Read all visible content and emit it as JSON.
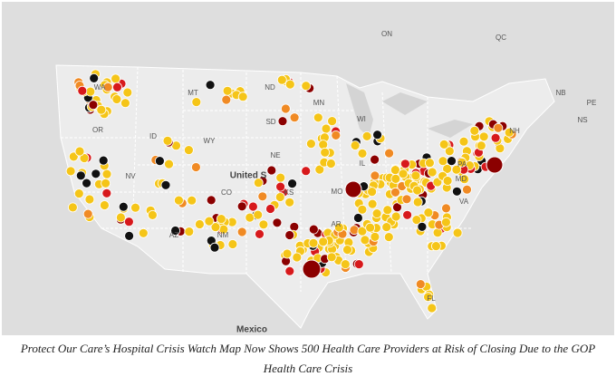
{
  "map": {
    "labels": [
      "ON",
      "QC",
      "NB",
      "PE",
      "NS",
      "WA",
      "MT",
      "ND",
      "MN",
      "WI",
      "SD",
      "WY",
      "ID",
      "OR",
      "NV",
      "NE",
      "CO",
      "KS",
      "MO",
      "IL",
      "AR",
      "AZ",
      "NM",
      "PA",
      "MD",
      "VA",
      "NH",
      "FL"
    ],
    "country": "United S",
    "mexico": "Mexico"
  },
  "caption": "Protect Our Care’s Hospital Crisis Watch Map Now Shows 500 Health Care Providers at Risk of Closing Due to the GOP Health Care Crisis"
}
